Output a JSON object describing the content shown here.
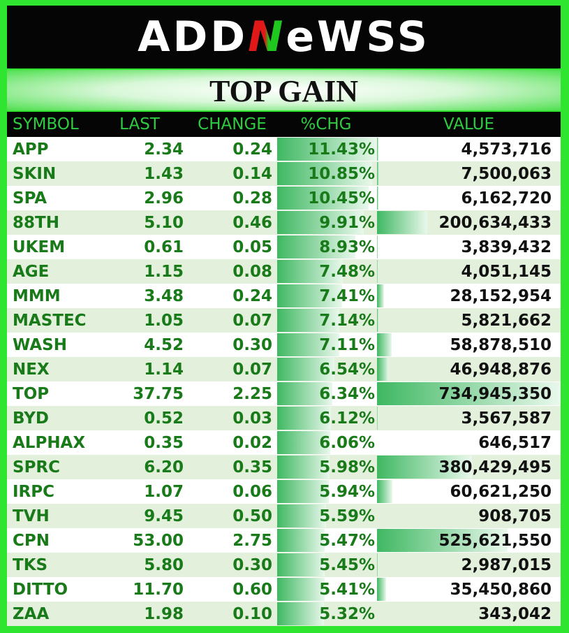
{
  "header": {
    "logo": [
      "ADD",
      "N",
      "eWSS"
    ],
    "title": "TOP GAIN"
  },
  "table": {
    "columns": [
      "SYMBOL",
      "LAST",
      "CHANGE",
      "%CHG",
      "VALUE"
    ],
    "rows": [
      [
        "APP",
        "2.34",
        "0.24",
        "11.43%",
        "4,573,716"
      ],
      [
        "SKIN",
        "1.43",
        "0.14",
        "10.85%",
        "7,500,063"
      ],
      [
        "SPA",
        "2.96",
        "0.28",
        "10.45%",
        "6,162,720"
      ],
      [
        "88TH",
        "5.10",
        "0.46",
        "9.91%",
        "200,634,433"
      ],
      [
        "UKEM",
        "0.61",
        "0.05",
        "8.93%",
        "3,839,432"
      ],
      [
        "AGE",
        "1.15",
        "0.08",
        "7.48%",
        "4,051,145"
      ],
      [
        "MMM",
        "3.48",
        "0.24",
        "7.41%",
        "28,152,954"
      ],
      [
        "MASTEC",
        "1.05",
        "0.07",
        "7.14%",
        "5,821,662"
      ],
      [
        "WASH",
        "4.52",
        "0.30",
        "7.11%",
        "58,878,510"
      ],
      [
        "NEX",
        "1.14",
        "0.07",
        "6.54%",
        "46,948,876"
      ],
      [
        "TOP",
        "37.75",
        "2.25",
        "6.34%",
        "734,945,350"
      ],
      [
        "BYD",
        "0.52",
        "0.03",
        "6.12%",
        "3,567,587"
      ],
      [
        "ALPHAX",
        "0.35",
        "0.02",
        "6.06%",
        "646,517"
      ],
      [
        "SPRC",
        "6.20",
        "0.35",
        "5.98%",
        "380,429,495"
      ],
      [
        "IRPC",
        "1.07",
        "0.06",
        "5.94%",
        "60,621,250"
      ],
      [
        "TVH",
        "9.45",
        "0.50",
        "5.59%",
        "908,705"
      ],
      [
        "CPN",
        "53.00",
        "2.75",
        "5.47%",
        "525,621,550"
      ],
      [
        "TKS",
        "5.80",
        "0.30",
        "5.45%",
        "2,987,015"
      ],
      [
        "DITTO",
        "11.70",
        "0.60",
        "5.41%",
        "35,450,860"
      ],
      [
        "ZAA",
        "1.98",
        "0.10",
        "5.32%",
        "343,042"
      ]
    ]
  }
}
